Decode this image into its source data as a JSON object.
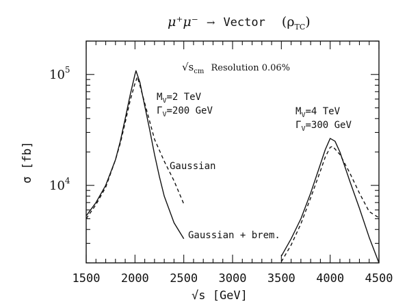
{
  "chart_data": {
    "type": "line",
    "title": {
      "lhs": "μ⁺μ⁻",
      "arrow": "→",
      "rhs": "Vector",
      "paren": "(ρ",
      "paren_sub": "TC",
      "paren_close": ")"
    },
    "xlabel": "√s [GeV]",
    "ylabel": "σ [fb]",
    "xlim": [
      1500,
      4500
    ],
    "ylim": [
      2000,
      200000
    ],
    "y_scale": "log",
    "grid": false,
    "x_ticks": [
      1500,
      2000,
      2500,
      3000,
      3500,
      4000,
      4500
    ],
    "x_tick_labels": [
      "1500",
      "2000",
      "2500",
      "3000",
      "3500",
      "4000",
      "4500"
    ],
    "y_tick_labels": [
      {
        "base": "10",
        "exp": "5",
        "value": 100000
      },
      {
        "base": "10",
        "exp": "4",
        "value": 10000
      }
    ],
    "annotations": {
      "resolution_sym": "√s",
      "resolution_sub": "cm",
      "resolution_text": "Resolution 0.06%",
      "peak1_mass": "M",
      "peak1_mass_sub": "V",
      "peak1_mass_val": "=2 TeV",
      "peak1_width": "Γ",
      "peak1_width_sub": "V",
      "peak1_width_val": "=200 GeV",
      "peak2_mass": "M",
      "peak2_mass_sub": "V",
      "peak2_mass_val": "=4 TeV",
      "peak2_width": "Γ",
      "peak2_width_sub": "V",
      "peak2_width_val": "=300 GeV",
      "gaussian_label": "Gaussian",
      "gaussian_brem_label": "Gaussian + brem."
    },
    "series": [
      {
        "name": "Gaussian + brem.",
        "style": "solid",
        "segments": [
          {
            "x": [
              1500,
              1600,
              1700,
              1800,
              1850,
              1900,
              1950,
              2000,
              2010,
              2050,
              2100,
              2150,
              2200,
              2250,
              2300,
              2400,
              2500
            ],
            "y": [
              5300,
              7000,
              10000,
              17000,
              25000,
              40000,
              65000,
              100000,
              108000,
              85000,
              52000,
              32000,
              19000,
              12000,
              8000,
              4600,
              3300
            ]
          },
          {
            "x": [
              3500,
              3600,
              3700,
              3800,
              3900,
              3950,
              4000,
              4050,
              4100,
              4200,
              4300,
              4400,
              4500
            ],
            "y": [
              2300,
              3300,
              5000,
              8500,
              15500,
              21000,
              26500,
              25000,
              20000,
              11000,
              6200,
              3400,
              2000
            ]
          }
        ]
      },
      {
        "name": "Gaussian",
        "style": "dashed",
        "segments": [
          {
            "x": [
              1500,
              1600,
              1700,
              1800,
              1850,
              1900,
              1950,
              2000,
              2025,
              2050,
              2100,
              2150,
              2200,
              2300,
              2400,
              2500
            ],
            "y": [
              5000,
              6700,
              9600,
              17000,
              24000,
              37000,
              58000,
              83000,
              95000,
              80000,
              55000,
              38000,
              26000,
              16500,
              11000,
              6800
            ]
          },
          {
            "x": [
              3500,
              3600,
              3700,
              3800,
              3900,
              3950,
              4000,
              4025,
              4100,
              4200,
              4300,
              4400,
              4500
            ],
            "y": [
              2050,
              2900,
              4500,
              7700,
              13500,
              18000,
              22000,
              22500,
              19000,
              13000,
              8500,
              5800,
              5100
            ]
          }
        ]
      }
    ]
  }
}
